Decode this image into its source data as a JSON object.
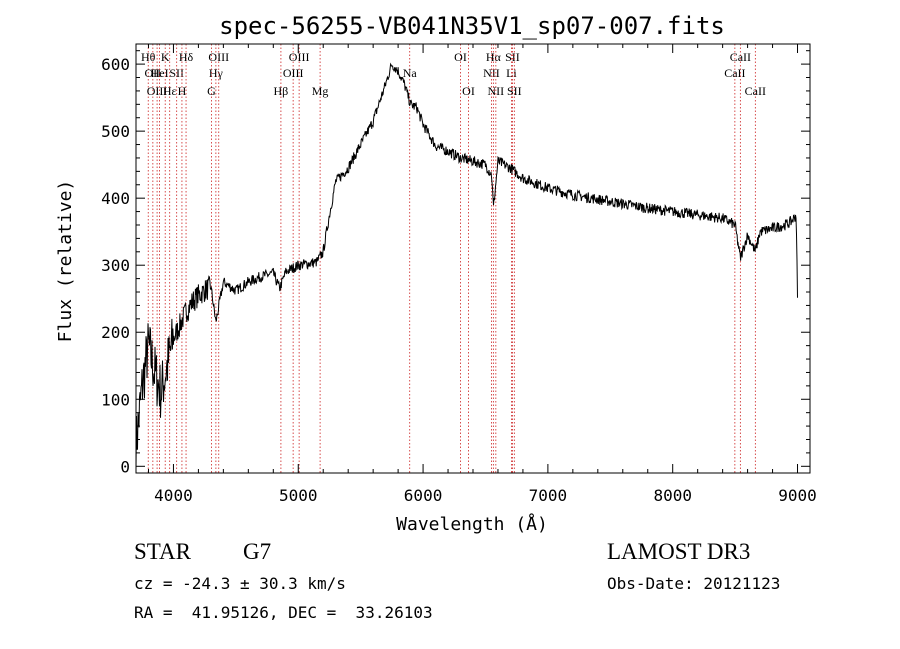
{
  "chart_data": {
    "type": "line",
    "title": "spec-56255-VB041N35V1_sp07-007.fits",
    "xlabel": "Wavelength (Å)",
    "ylabel": "Flux (relative)",
    "xlim": [
      3700,
      9100
    ],
    "ylim": [
      -10,
      630
    ],
    "xticks": [
      4000,
      5000,
      6000,
      7000,
      8000,
      9000
    ],
    "yticks": [
      0,
      100,
      200,
      300,
      400,
      500,
      600
    ],
    "xtick_labels": [
      "4000",
      "5000",
      "6000",
      "7000",
      "8000",
      "9000"
    ],
    "ytick_labels": [
      "0",
      "100",
      "200",
      "300",
      "400",
      "500",
      "600"
    ],
    "spectrum": {
      "x": [
        3700,
        3750,
        3800,
        3850,
        3900,
        3950,
        4000,
        4050,
        4100,
        4150,
        4200,
        4250,
        4300,
        4340,
        4400,
        4500,
        4600,
        4700,
        4800,
        4850,
        4900,
        5000,
        5100,
        5150,
        5200,
        5250,
        5300,
        5400,
        5500,
        5600,
        5700,
        5750,
        5800,
        5850,
        5900,
        5950,
        6000,
        6100,
        6200,
        6300,
        6400,
        6500,
        6550,
        6563,
        6600,
        6700,
        6800,
        7000,
        7200,
        7500,
        7800,
        8000,
        8200,
        8400,
        8500,
        8542,
        8600,
        8662,
        8700,
        8800,
        8900,
        8950,
        8990,
        9000
      ],
      "y": [
        30,
        120,
        180,
        140,
        110,
        150,
        190,
        210,
        230,
        245,
        255,
        262,
        268,
        215,
        275,
        262,
        275,
        283,
        288,
        265,
        290,
        300,
        303,
        305,
        320,
        375,
        425,
        445,
        480,
        515,
        570,
        600,
        590,
        570,
        540,
        535,
        510,
        478,
        470,
        460,
        455,
        450,
        435,
        385,
        455,
        445,
        430,
        415,
        405,
        395,
        385,
        380,
        375,
        370,
        360,
        310,
        345,
        320,
        350,
        355,
        360,
        365,
        375,
        250
      ]
    },
    "lines": [
      {
        "wl": 3798,
        "label": "Hθ",
        "row": 0
      },
      {
        "wl": 3835,
        "label": "OII",
        "row": 1
      },
      {
        "wl": 3869,
        "label": "OIII",
        "row": 2
      },
      {
        "wl": 3889,
        "label": "HeI",
        "row": 1
      },
      {
        "wl": 3934,
        "label": "K",
        "row": 0
      },
      {
        "wl": 3970,
        "label": "Hε",
        "row": 2
      },
      {
        "wl": 4026,
        "label": "SII",
        "row": 1
      },
      {
        "wl": 4101,
        "label": "Hδ",
        "row": 0
      },
      {
        "wl": 4068,
        "label": "H",
        "row": 2
      },
      {
        "wl": 4340,
        "label": "Hγ",
        "row": 1
      },
      {
        "wl": 4305,
        "label": "G",
        "row": 2
      },
      {
        "wl": 4363,
        "label": "OIII",
        "row": 0
      },
      {
        "wl": 4861,
        "label": "Hβ",
        "row": 2
      },
      {
        "wl": 4959,
        "label": "OIII",
        "row": 1
      },
      {
        "wl": 5007,
        "label": "OIII",
        "row": 0
      },
      {
        "wl": 5175,
        "label": "Mg",
        "row": 2
      },
      {
        "wl": 5893,
        "label": "Na",
        "row": 1
      },
      {
        "wl": 6300,
        "label": "OI",
        "row": 0
      },
      {
        "wl": 6364,
        "label": "OI",
        "row": 2
      },
      {
        "wl": 6548,
        "label": "NII",
        "row": 1
      },
      {
        "wl": 6563,
        "label": "Hα",
        "row": 0
      },
      {
        "wl": 6583,
        "label": "NII",
        "row": 2
      },
      {
        "wl": 6708,
        "label": "Li",
        "row": 1
      },
      {
        "wl": 6716,
        "label": "SII",
        "row": 0
      },
      {
        "wl": 6731,
        "label": "SII",
        "row": 2
      },
      {
        "wl": 8498,
        "label": "CaII",
        "row": 1
      },
      {
        "wl": 8542,
        "label": "CaII",
        "row": 0
      },
      {
        "wl": 8662,
        "label": "CaII",
        "row": 2
      }
    ]
  },
  "info": {
    "object_class": "STAR",
    "subclass": "G7",
    "survey": "LAMOST DR3",
    "redshift": "cz = -24.3 ± 30.3 km/s",
    "obs_date": "Obs-Date: 20121123",
    "coords": "RA =  41.95126, DEC =  33.26103"
  }
}
